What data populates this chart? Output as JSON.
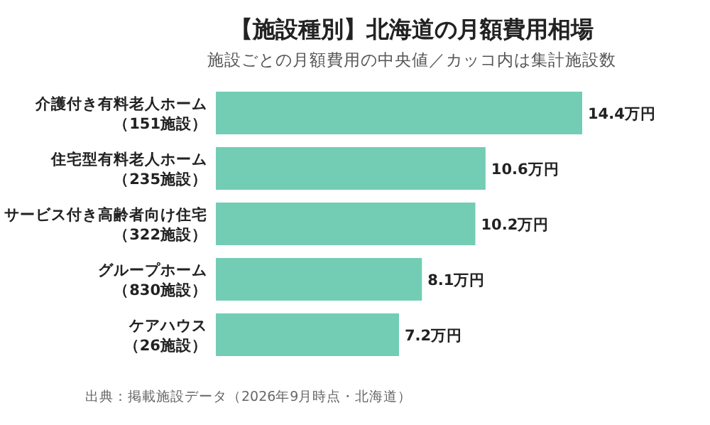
{
  "chart_data": {
    "type": "bar",
    "orientation": "horizontal",
    "title": "【施設種別】北海道の月額費用相場",
    "subtitle": "施設ごとの月額費用の中央値／カッコ内は集計施設数",
    "categories": [
      "介護付き有料老人ホーム（151施設）",
      "住宅型有料老人ホーム（235施設）",
      "サービス付き高齢者向け住宅（322施設）",
      "グループホーム（830施設）",
      "ケアハウス（26施設）"
    ],
    "values": [
      14.4,
      10.6,
      10.2,
      8.1,
      7.2
    ],
    "value_labels": [
      "14.4万円",
      "10.6万円",
      "10.2万円",
      "8.1万円",
      "7.2万円"
    ],
    "color": "#72cdb4",
    "annotations": [
      "出典：掲載施設データ（2026年9月時点・北海道）"
    ]
  }
}
